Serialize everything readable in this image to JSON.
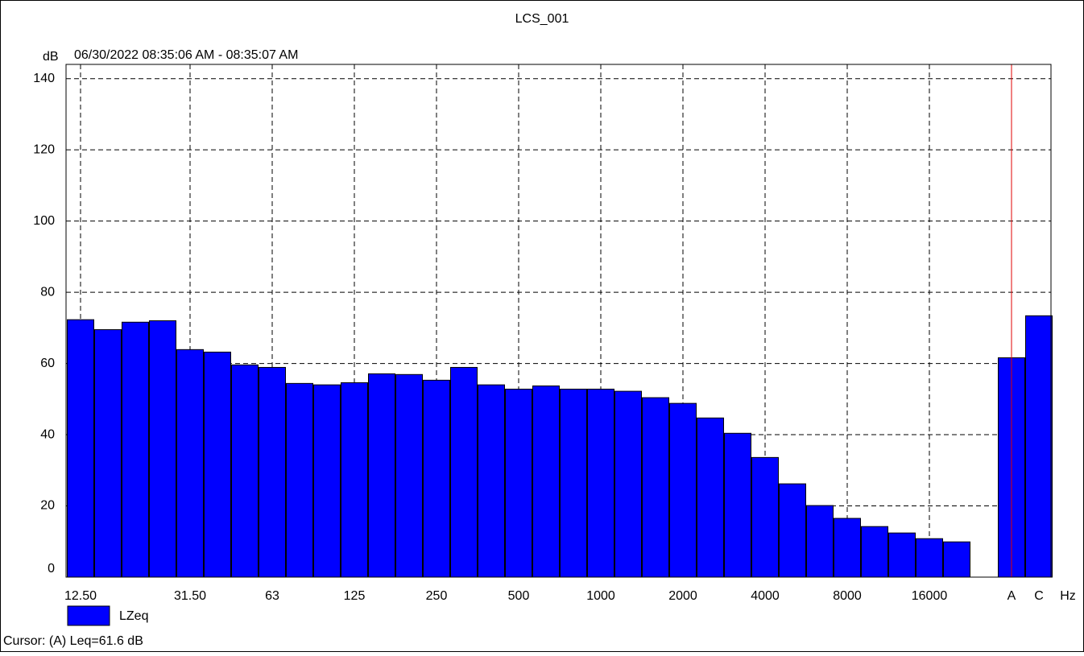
{
  "chart_data": {
    "type": "bar",
    "title": "LCS_001",
    "subtitle": "06/30/2022 08:35:06 AM - 08:35:07 AM",
    "y_label": "dB",
    "x_label": "Hz",
    "categories": [
      "12.50",
      null,
      null,
      null,
      "31.50",
      null,
      null,
      "63",
      null,
      null,
      "125",
      null,
      null,
      "250",
      null,
      null,
      "500",
      null,
      null,
      "1000",
      null,
      null,
      "2000",
      null,
      null,
      "4000",
      null,
      null,
      "8000",
      null,
      null,
      "16000",
      null,
      null,
      "A",
      "C"
    ],
    "series": [
      {
        "name": "LZeq",
        "color": "#0000ff",
        "values": [
          72.3,
          69.5,
          71.6,
          72.0,
          63.9,
          63.2,
          59.6,
          58.9,
          54.4,
          54.0,
          54.6,
          57.1,
          56.9,
          55.3,
          58.9,
          54.0,
          52.8,
          53.7,
          52.8,
          52.8,
          52.2,
          50.4,
          48.8,
          44.7,
          40.4,
          33.6,
          26.2,
          20.1,
          16.5,
          14.2,
          12.4,
          10.8,
          9.9,
          null,
          61.6,
          73.4
        ]
      }
    ],
    "ylim": [
      0,
      144
    ],
    "yticks": [
      0,
      20,
      40,
      60,
      80,
      100,
      120,
      140
    ],
    "grid": true,
    "cursor_category": "A",
    "cursor_color": "#e00000",
    "cursor_text": "Cursor: (A)  Leq=61.6 dB"
  }
}
